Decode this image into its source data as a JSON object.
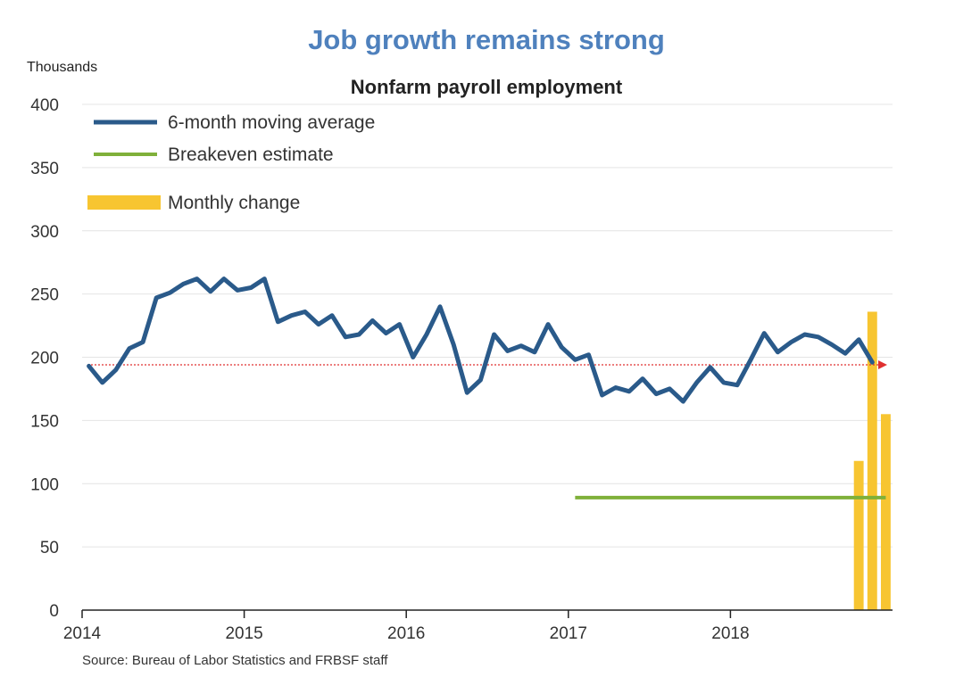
{
  "chart_data": {
    "type": "line",
    "title": "Job growth remains strong",
    "subtitle": "Nonfarm payroll employment",
    "y_unit": "Thousands",
    "source": "Source: Bureau of Labor Statistics and FRBSF staff",
    "xlim": [
      "2014-01",
      "2018-12"
    ],
    "ylim": [
      0,
      400
    ],
    "y_ticks": [
      "0",
      "50",
      "100",
      "150",
      "200",
      "250",
      "300",
      "350",
      "400"
    ],
    "x_ticks": [
      "2014",
      "2015",
      "2016",
      "2017",
      "2018"
    ],
    "grid": true,
    "legend_position": "top-left",
    "series": [
      {
        "name": "6-month moving average",
        "type": "line",
        "color": "#2a5a8a",
        "x": [
          "2014-01",
          "2014-02",
          "2014-03",
          "2014-04",
          "2014-05",
          "2014-06",
          "2014-07",
          "2014-08",
          "2014-09",
          "2014-10",
          "2014-11",
          "2014-12",
          "2015-01",
          "2015-02",
          "2015-03",
          "2015-04",
          "2015-05",
          "2015-06",
          "2015-07",
          "2015-08",
          "2015-09",
          "2015-10",
          "2015-11",
          "2015-12",
          "2016-01",
          "2016-02",
          "2016-03",
          "2016-04",
          "2016-05",
          "2016-06",
          "2016-07",
          "2016-08",
          "2016-09",
          "2016-10",
          "2016-11",
          "2016-12",
          "2017-01",
          "2017-02",
          "2017-03",
          "2017-04",
          "2017-05",
          "2017-06",
          "2017-07",
          "2017-08",
          "2017-09",
          "2017-10",
          "2017-11",
          "2017-12",
          "2018-01",
          "2018-02",
          "2018-03",
          "2018-04",
          "2018-05",
          "2018-06",
          "2018-07",
          "2018-08",
          "2018-09",
          "2018-10",
          "2018-11",
          "2018-12"
        ],
        "values": [
          193,
          180,
          190,
          207,
          212,
          247,
          251,
          258,
          262,
          252,
          262,
          253,
          255,
          262,
          228,
          233,
          236,
          226,
          233,
          216,
          218,
          229,
          219,
          226,
          200,
          218,
          240,
          210,
          172,
          182,
          218,
          205,
          209,
          204,
          226,
          208,
          198,
          202,
          170,
          176,
          173,
          183,
          171,
          175,
          165,
          180,
          192,
          180,
          178,
          198,
          219,
          204,
          212,
          218,
          216,
          210,
          203,
          214,
          196,
          null
        ]
      },
      {
        "name": "Breakeven estimate",
        "type": "line",
        "color": "#7fb03a",
        "x": [
          "2017-01",
          "2018-12"
        ],
        "values": [
          89,
          89
        ]
      },
      {
        "name": "Monthly change",
        "type": "bar",
        "color": "#f7c531",
        "x": [
          "2018-10",
          "2018-11",
          "2018-12"
        ],
        "values": [
          118,
          236,
          155
        ]
      }
    ],
    "reference_line": {
      "value": 194,
      "color": "#e03030"
    }
  }
}
